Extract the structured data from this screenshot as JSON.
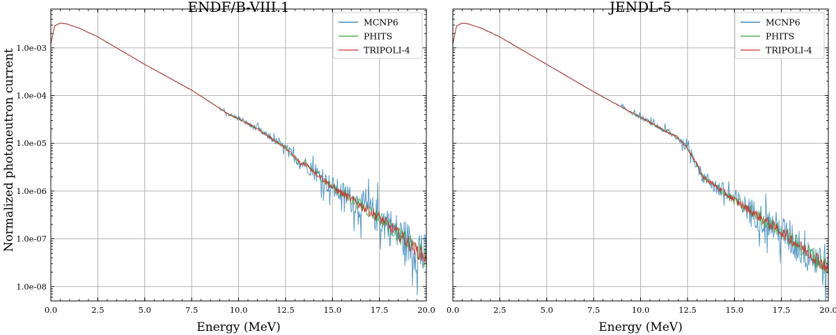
{
  "figure": {
    "ylabel": "Normalized photoneutron current"
  },
  "chart_data": [
    {
      "type": "line",
      "title": "ENDF/B-VIII.1",
      "xlabel": "Energy (MeV)",
      "ylabel": "Normalized photoneutron current",
      "xlim": [
        0,
        20
      ],
      "ylim": [
        5e-09,
        0.0065
      ],
      "yscale": "log",
      "xticks": [
        "0.0",
        "2.5",
        "5.0",
        "7.5",
        "10.0",
        "12.5",
        "15.0",
        "17.5",
        "20.0"
      ],
      "yticks": [
        "1.0e-03",
        "1.0e-04",
        "1.0e-05",
        "1.0e-06",
        "1.0e-07",
        "1.0e-08"
      ],
      "grid": true,
      "legend_position": "top-right",
      "series": [
        {
          "name": "MCNP6",
          "color": "#1f77b4"
        },
        {
          "name": "PHITS",
          "color": "#2ca02c"
        },
        {
          "name": "TRIPOLI-4",
          "color": "#d62728"
        }
      ],
      "x": [
        0.0,
        0.2,
        0.5,
        0.8,
        1.5,
        2.5,
        5.0,
        7.5,
        9.5,
        10.0,
        11.0,
        12.5,
        13.2,
        13.3,
        13.5,
        15.0,
        17.5,
        20.0
      ],
      "y": [
        0.0012,
        0.0029,
        0.0033,
        0.0032,
        0.0026,
        0.0017,
        0.00045,
        0.00013,
        4e-05,
        3.3e-05,
        2e-05,
        8e-06,
        4.2e-06,
        3.6e-06,
        3.9e-06,
        1.2e-06,
        2.8e-07,
        3.8e-08
      ]
    },
    {
      "type": "line",
      "title": "JENDL-5",
      "xlabel": "Energy (MeV)",
      "ylabel": "",
      "xlim": [
        0,
        20
      ],
      "ylim": [
        5e-09,
        0.0065
      ],
      "yscale": "log",
      "xticks": [
        "0.0",
        "2.5",
        "5.0",
        "7.5",
        "10.0",
        "12.5",
        "15.0",
        "17.5",
        "20.0"
      ],
      "yticks": [],
      "grid": true,
      "legend_position": "top-right",
      "series": [
        {
          "name": "MCNP6",
          "color": "#1f77b4"
        },
        {
          "name": "PHITS",
          "color": "#2ca02c"
        },
        {
          "name": "TRIPOLI-4",
          "color": "#d62728"
        }
      ],
      "x": [
        0.0,
        0.2,
        0.5,
        0.8,
        1.5,
        2.5,
        5.0,
        7.5,
        10.0,
        12.0,
        12.5,
        13.0,
        13.3,
        15.0,
        17.5,
        20.0
      ],
      "y": [
        0.0012,
        0.0029,
        0.0033,
        0.0032,
        0.0026,
        0.0017,
        0.00045,
        0.00012,
        3.5e-05,
        1.3e-05,
        8e-06,
        3.6e-06,
        2e-06,
        6.5e-07,
        1.4e-07,
        2.5e-08
      ]
    }
  ]
}
